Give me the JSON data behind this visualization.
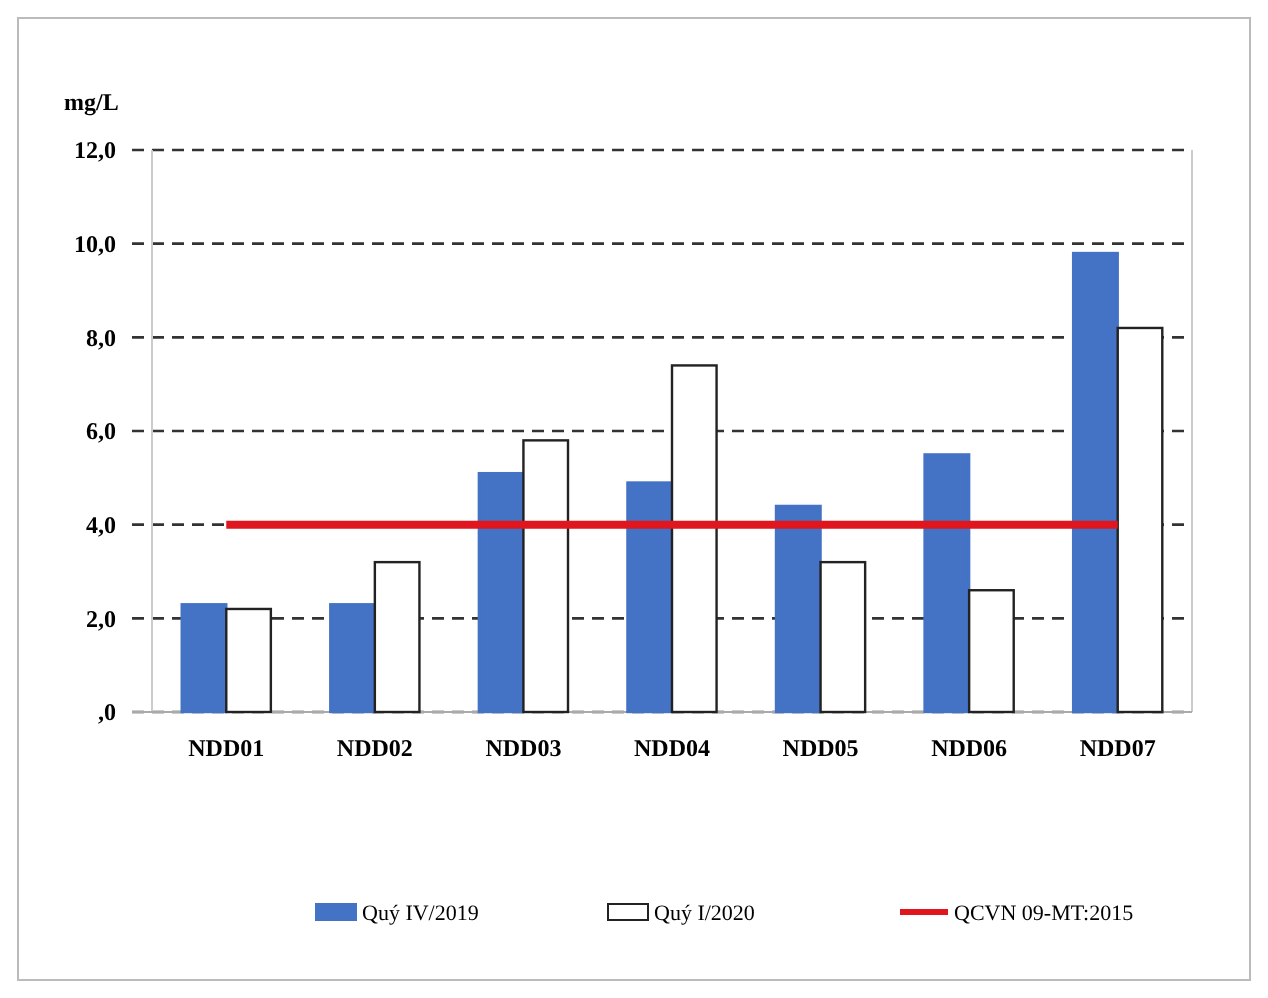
{
  "chart_data": {
    "type": "bar",
    "ylabel": "mg/L",
    "categories": [
      "NDD01",
      "NDD02",
      "NDD03",
      "NDD04",
      "NDD05",
      "NDD06",
      "NDD07"
    ],
    "series": [
      {
        "name": "Quý IV/2019",
        "color": "#4472c4",
        "values": [
          2.3,
          2.3,
          5.1,
          4.9,
          4.4,
          5.5,
          9.8
        ]
      },
      {
        "name": "Quý I/2020",
        "color": "#ffffff",
        "values": [
          2.2,
          3.2,
          5.8,
          7.4,
          3.2,
          2.6,
          8.2
        ]
      },
      {
        "name": "QCVN 09-MT:2015",
        "type": "line",
        "color": "#e0161e",
        "values": [
          4,
          4,
          4,
          4,
          4,
          4,
          4
        ]
      }
    ],
    "ylim": [
      0,
      12
    ],
    "yticks": [
      {
        "value": 0,
        "label": ",0"
      },
      {
        "value": 2,
        "label": "2,0"
      },
      {
        "value": 4,
        "label": "4,0"
      },
      {
        "value": 6,
        "label": "6,0"
      },
      {
        "value": 8,
        "label": "8,0"
      },
      {
        "value": 10,
        "label": "10,0"
      },
      {
        "value": 12,
        "label": "12,0"
      }
    ],
    "grid": "y",
    "legend": "bottom"
  }
}
